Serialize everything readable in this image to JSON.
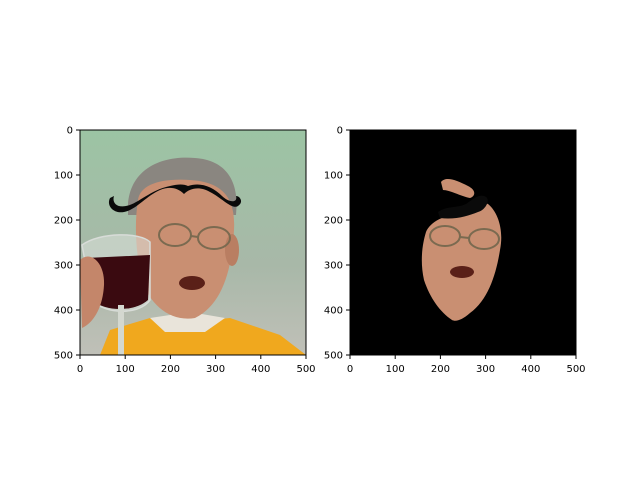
{
  "chart_data": [
    {
      "type": "image",
      "title": "",
      "xlabel": "",
      "ylabel": "",
      "xlim": [
        0,
        500
      ],
      "ylim": [
        500,
        0
      ],
      "x_ticks": [
        0,
        100,
        200,
        300,
        400,
        500
      ],
      "y_ticks": [
        0,
        100,
        200,
        300,
        400,
        500
      ],
      "content": "photo-with-mustache-overlay"
    },
    {
      "type": "image",
      "title": "",
      "xlabel": "",
      "ylabel": "",
      "xlim": [
        0,
        500
      ],
      "ylim": [
        500,
        0
      ],
      "x_ticks": [
        0,
        100,
        200,
        300,
        400,
        500
      ],
      "y_ticks": [
        0,
        100,
        200,
        300,
        400,
        500
      ],
      "content": "face-mask-on-black"
    }
  ],
  "colors": {
    "mask_background": "#000000",
    "mustache": "#0a0a0a",
    "skin": "#c98f72",
    "robe": "#f0a81e",
    "wine": "#3a0a10",
    "photo_background": "#8fb89a"
  }
}
